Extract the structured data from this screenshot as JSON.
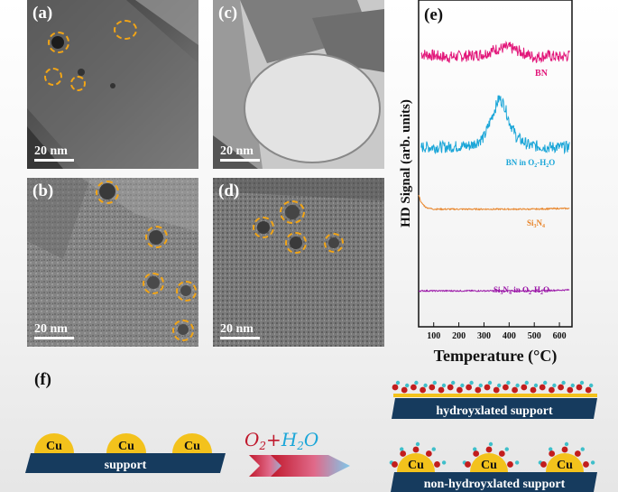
{
  "panels": {
    "a": {
      "label": "(a)",
      "scale": "20 nm"
    },
    "b": {
      "label": "(b)",
      "scale": "20 nm"
    },
    "c": {
      "label": "(c)",
      "scale": "20 nm"
    },
    "d": {
      "label": "(d)",
      "scale": "20 nm"
    },
    "e": {
      "label": "(e)"
    },
    "f": {
      "label": "(f)"
    }
  },
  "chart_data": {
    "type": "line",
    "xlabel": "Temperature (°C)",
    "ylabel": "HD Signal (arb. units)",
    "xlim": [
      40,
      650
    ],
    "x_ticks": [
      100,
      200,
      300,
      400,
      500,
      600
    ],
    "y_ticks": [],
    "grid": false,
    "series": [
      {
        "name": "BN",
        "color": "#e2177a",
        "x": [
          50,
          150,
          250,
          300,
          350,
          400,
          450,
          500,
          550,
          600,
          640
        ],
        "y": [
          8.35,
          8.25,
          8.3,
          8.35,
          8.5,
          8.55,
          8.4,
          8.25,
          8.3,
          8.25,
          8.3
        ]
      },
      {
        "name": "BN in O2-H2O",
        "color": "#1ba6d8",
        "x": [
          50,
          150,
          250,
          300,
          330,
          360,
          380,
          400,
          430,
          480,
          550,
          640
        ],
        "y": [
          5.5,
          5.5,
          5.55,
          5.8,
          6.4,
          7.0,
          6.8,
          6.3,
          5.8,
          5.55,
          5.5,
          5.5
        ]
      },
      {
        "name": "Si3N4",
        "color": "#e8852a",
        "x": [
          40,
          50,
          70,
          100,
          200,
          300,
          400,
          500,
          600,
          640
        ],
        "y": [
          4.05,
          3.8,
          3.65,
          3.6,
          3.6,
          3.6,
          3.6,
          3.6,
          3.62,
          3.62
        ]
      },
      {
        "name": "Si3N4 in O2-H2O",
        "color": "#9b17a8",
        "x": [
          40,
          100,
          200,
          300,
          400,
          500,
          600,
          640
        ],
        "y": [
          1.1,
          1.1,
          1.1,
          1.1,
          1.1,
          1.1,
          1.12,
          1.13
        ]
      }
    ],
    "series_labels": {
      "BN": "BN",
      "BN_O2H2O": {
        "base": "BN in O",
        "sub1": "2",
        "mid": "-H",
        "sub2": "2",
        "end": "O"
      },
      "Si3N4": {
        "a": "Si",
        "s1": "3",
        "b": "N",
        "s2": "4"
      },
      "Si3N4_O2H2O": {
        "a": "Si",
        "s1": "3",
        "b": "N",
        "s2": "4",
        "c": " in O",
        "s3": "2",
        "d": "-H",
        "s4": "2",
        "e": "O"
      }
    }
  },
  "scheme": {
    "cu_label": "Cu",
    "support": "support",
    "hydroxylated": "hydroyxlated support",
    "non_hydroxylated": "non-hydroyxlated support",
    "formula": {
      "o": "O",
      "o_sub": "2",
      "plus": "+",
      "h": "H",
      "h_sub": "2",
      "o2": "O"
    }
  },
  "colors": {
    "circle": "#f2a516",
    "support": "#163b5e",
    "cu": "#f3c21c",
    "oxygen": "#c21d1d",
    "hydrogen": "#3fbfca"
  }
}
